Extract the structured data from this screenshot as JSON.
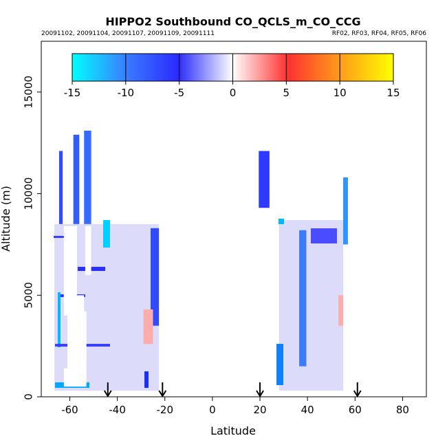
{
  "chart_data": {
    "type": "heatmap",
    "title": "HIPPO2 Southbound CO_QCLS_m_CO_CCG",
    "subtitle_left": "20091102, 20091104, 20091107, 20091109, 20091111",
    "subtitle_right": "RF02, RF03, RF04, RF05, RF06",
    "xlabel": "Latitude",
    "ylabel": "Altitude (m)",
    "xlim": [
      -72,
      90
    ],
    "ylim": [
      0,
      17500
    ],
    "xticks": [
      -60,
      -40,
      -20,
      0,
      20,
      40,
      60,
      80
    ],
    "xtick_labels": [
      "-60",
      "-40",
      "-20",
      "0",
      "20",
      "40",
      "60",
      "80"
    ],
    "yticks": [
      0,
      5000,
      10000,
      15000
    ],
    "ytick_labels": [
      "0",
      "5000",
      "10000",
      "15000"
    ],
    "colorbar": {
      "range": [
        -15,
        15
      ],
      "ticks": [
        -15,
        -10,
        -5,
        0,
        5,
        10,
        15
      ],
      "tick_labels": [
        "-15",
        "-10",
        "-5",
        "0",
        "5",
        "10",
        "15"
      ],
      "colors": [
        "#00ffff",
        "#3a7bff",
        "#2a2aff",
        "#ffffff",
        "#ff3030",
        "#ff9a1a",
        "#ffff00"
      ]
    },
    "arrows_latitude": [
      -44,
      -21,
      20,
      61
    ],
    "regions": [
      {
        "name": "far-south-column-1",
        "x0": -64.5,
        "x1": -63,
        "y0": 8500,
        "y1": 12100,
        "value": -7
      },
      {
        "name": "south-column-2",
        "x0": -58.5,
        "x1": -56,
        "y0": 8500,
        "y1": 12900,
        "value": -8
      },
      {
        "name": "south-column-3",
        "x0": -54,
        "x1": -51,
        "y0": 8500,
        "y1": 13100,
        "value": -9
      },
      {
        "name": "south-main-block",
        "x0": -66.5,
        "x1": -22.5,
        "y0": 300,
        "y1": 8500,
        "value": -3
      },
      {
        "name": "south-inner-strong",
        "x0": -26,
        "x1": -22.5,
        "y0": 3500,
        "y1": 8300,
        "value": -7
      },
      {
        "name": "south-red-patch",
        "x0": -29,
        "x1": -25,
        "y0": 2600,
        "y1": 4300,
        "value": 2
      },
      {
        "name": "north-tail-upper",
        "x0": 19.5,
        "x1": 24,
        "y0": 9300,
        "y1": 12100,
        "value": -6
      },
      {
        "name": "north-main-block",
        "x0": 28,
        "x1": 55,
        "y0": 300,
        "y1": 8700,
        "value": -3
      },
      {
        "name": "north-strong-column",
        "x0": 36.5,
        "x1": 39.5,
        "y0": 1500,
        "y1": 8200,
        "value": -10
      },
      {
        "name": "north-red-patch",
        "x0": 53,
        "x1": 55,
        "y0": 3500,
        "y1": 5000,
        "value": 2
      },
      {
        "name": "north-column-high",
        "x0": 55,
        "x1": 57,
        "y0": 7500,
        "y1": 10800,
        "value": -11
      }
    ]
  }
}
